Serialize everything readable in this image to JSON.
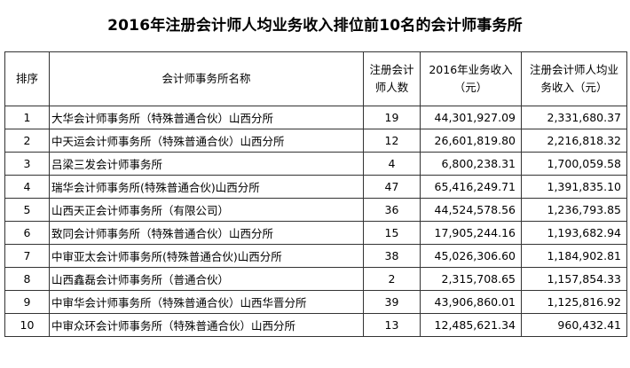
{
  "title": "2016年注册会计师人均业务收入排位前10名的会计师事务所",
  "table": {
    "headers": {
      "rank": "排序",
      "name": "会计师事务所名称",
      "num": "注册会计师人数",
      "revenue": "2016年业务收入（元）",
      "avg": "注册会计师人均业务收入（元）"
    },
    "rows": [
      {
        "rank": "1",
        "name": "大华会计师事务所（特殊普通合伙）山西分所",
        "num": "19",
        "revenue": "44,301,927.09",
        "avg": "2,331,680.37"
      },
      {
        "rank": "2",
        "name": "中天运会计师事务所（特殊普通合伙）山西分所",
        "num": "12",
        "revenue": "26,601,819.80",
        "avg": "2,216,818.32"
      },
      {
        "rank": "3",
        "name": "吕梁三发会计师事务所",
        "num": "4",
        "revenue": "6,800,238.31",
        "avg": "1,700,059.58"
      },
      {
        "rank": "4",
        "name": "瑞华会计师事务所(特殊普通合伙)山西分所",
        "num": "47",
        "revenue": "65,416,249.71",
        "avg": "1,391,835.10"
      },
      {
        "rank": "5",
        "name": "山西天正会计师事务所（有限公司）",
        "num": "36",
        "revenue": "44,524,578.56",
        "avg": "1,236,793.85"
      },
      {
        "rank": "6",
        "name": "致同会计师事务所（特殊普通合伙）山西分所",
        "num": "15",
        "revenue": "17,905,244.16",
        "avg": "1,193,682.94"
      },
      {
        "rank": "7",
        "name": "中审亚太会计师事务所(特殊普通合伙)山西分所",
        "num": "38",
        "revenue": "45,026,306.60",
        "avg": "1,184,902.81"
      },
      {
        "rank": "8",
        "name": "山西鑫磊会计师事务所（普通合伙）",
        "num": "2",
        "revenue": "2,315,708.65",
        "avg": "1,157,854.33"
      },
      {
        "rank": "9",
        "name": "中审华会计师事务所（特殊普通合伙）山西华晋分所",
        "num": "39",
        "revenue": "43,906,860.01",
        "avg": "1,125,816.92"
      },
      {
        "rank": "10",
        "name": "中审众环会计师事务所（特殊普通合伙）山西分所",
        "num": "13",
        "revenue": "12,485,621.34",
        "avg": "960,432.41"
      }
    ]
  }
}
